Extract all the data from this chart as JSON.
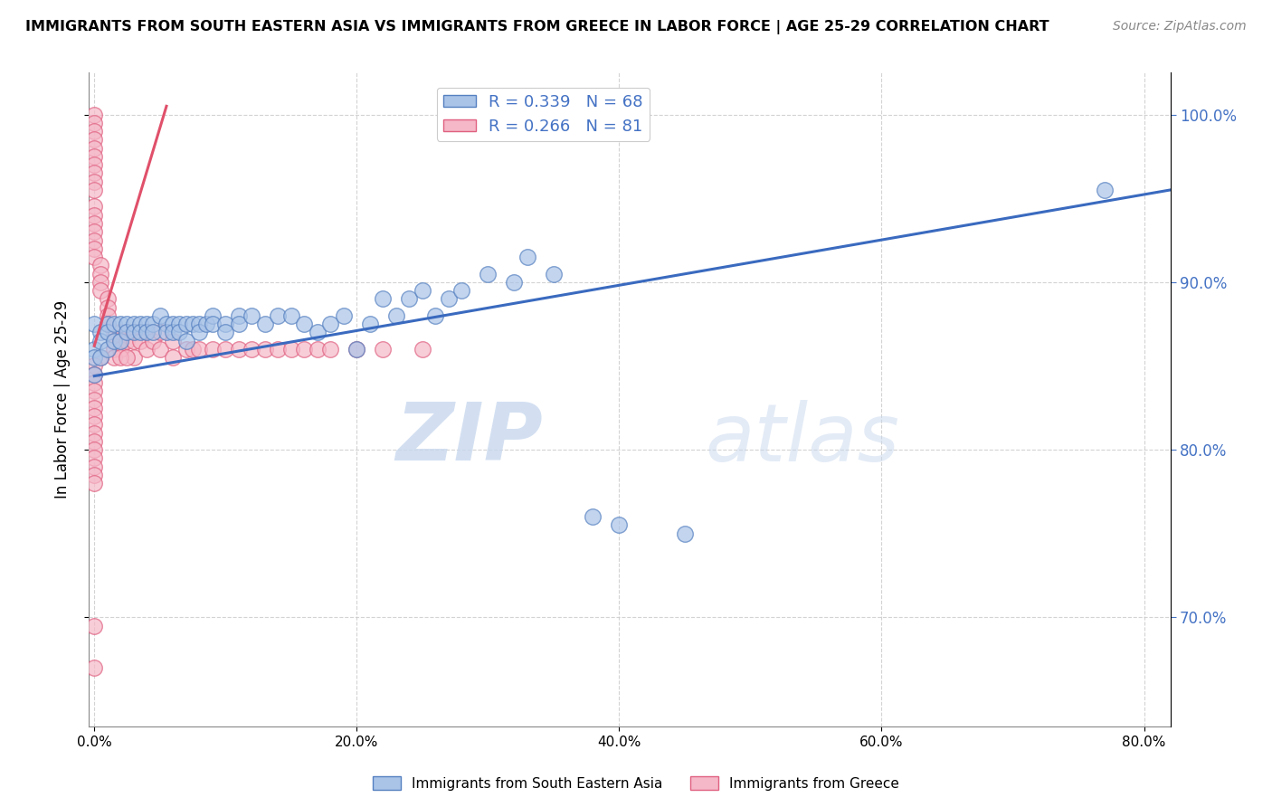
{
  "title": "IMMIGRANTS FROM SOUTH EASTERN ASIA VS IMMIGRANTS FROM GREECE IN LABOR FORCE | AGE 25-29 CORRELATION CHART",
  "source": "Source: ZipAtlas.com",
  "ylabel": "In Labor Force | Age 25-29",
  "xmin": -0.004,
  "xmax": 0.82,
  "ymin": 0.635,
  "ymax": 1.025,
  "blue_R": 0.339,
  "blue_N": 68,
  "pink_R": 0.266,
  "pink_N": 81,
  "blue_color": "#aac4e8",
  "pink_color": "#f5b8c8",
  "blue_edge_color": "#5580c0",
  "pink_edge_color": "#e06080",
  "blue_line_color": "#3a6abf",
  "pink_line_color": "#e0506a",
  "watermark_zip": "ZIP",
  "watermark_atlas": "atlas",
  "legend_label_blue": "Immigrants from South Eastern Asia",
  "legend_label_pink": "Immigrants from Greece",
  "blue_scatter_x": [
    0.0,
    0.0,
    0.0,
    0.0,
    0.005,
    0.005,
    0.005,
    0.01,
    0.01,
    0.01,
    0.015,
    0.015,
    0.02,
    0.02,
    0.025,
    0.025,
    0.03,
    0.03,
    0.035,
    0.035,
    0.04,
    0.04,
    0.045,
    0.045,
    0.05,
    0.055,
    0.055,
    0.06,
    0.06,
    0.065,
    0.065,
    0.07,
    0.07,
    0.075,
    0.08,
    0.08,
    0.085,
    0.09,
    0.09,
    0.1,
    0.1,
    0.11,
    0.11,
    0.12,
    0.13,
    0.14,
    0.15,
    0.16,
    0.17,
    0.18,
    0.19,
    0.2,
    0.21,
    0.22,
    0.23,
    0.24,
    0.25,
    0.26,
    0.27,
    0.28,
    0.3,
    0.32,
    0.33,
    0.35,
    0.38,
    0.4,
    0.77,
    0.45
  ],
  "blue_scatter_y": [
    0.86,
    0.875,
    0.855,
    0.845,
    0.87,
    0.865,
    0.855,
    0.875,
    0.87,
    0.86,
    0.875,
    0.865,
    0.875,
    0.865,
    0.875,
    0.87,
    0.875,
    0.87,
    0.875,
    0.87,
    0.875,
    0.87,
    0.875,
    0.87,
    0.88,
    0.875,
    0.87,
    0.875,
    0.87,
    0.875,
    0.87,
    0.875,
    0.865,
    0.875,
    0.875,
    0.87,
    0.875,
    0.88,
    0.875,
    0.875,
    0.87,
    0.88,
    0.875,
    0.88,
    0.875,
    0.88,
    0.88,
    0.875,
    0.87,
    0.875,
    0.88,
    0.86,
    0.875,
    0.89,
    0.88,
    0.89,
    0.895,
    0.88,
    0.89,
    0.895,
    0.905,
    0.9,
    0.915,
    0.905,
    0.76,
    0.755,
    0.955,
    0.75
  ],
  "pink_scatter_x": [
    0.0,
    0.0,
    0.0,
    0.0,
    0.0,
    0.0,
    0.0,
    0.0,
    0.0,
    0.0,
    0.0,
    0.0,
    0.0,
    0.0,
    0.0,
    0.0,
    0.0,
    0.005,
    0.005,
    0.005,
    0.005,
    0.01,
    0.01,
    0.01,
    0.01,
    0.015,
    0.015,
    0.015,
    0.02,
    0.02,
    0.02,
    0.025,
    0.025,
    0.03,
    0.03,
    0.03,
    0.035,
    0.04,
    0.04,
    0.045,
    0.05,
    0.05,
    0.06,
    0.06,
    0.07,
    0.075,
    0.08,
    0.09,
    0.1,
    0.11,
    0.12,
    0.13,
    0.14,
    0.15,
    0.16,
    0.17,
    0.18,
    0.2,
    0.22,
    0.25,
    0.015,
    0.02,
    0.025,
    0.005,
    0.0,
    0.0,
    0.0,
    0.0,
    0.0,
    0.0,
    0.0,
    0.0,
    0.0,
    0.0,
    0.0,
    0.0,
    0.0,
    0.0,
    0.0,
    0.0,
    0.0
  ],
  "pink_scatter_y": [
    1.0,
    0.995,
    0.99,
    0.985,
    0.98,
    0.975,
    0.97,
    0.965,
    0.96,
    0.955,
    0.945,
    0.94,
    0.935,
    0.93,
    0.925,
    0.92,
    0.915,
    0.91,
    0.905,
    0.9,
    0.895,
    0.89,
    0.885,
    0.88,
    0.875,
    0.87,
    0.865,
    0.86,
    0.87,
    0.865,
    0.86,
    0.87,
    0.865,
    0.87,
    0.865,
    0.855,
    0.865,
    0.87,
    0.86,
    0.865,
    0.87,
    0.86,
    0.865,
    0.855,
    0.86,
    0.86,
    0.86,
    0.86,
    0.86,
    0.86,
    0.86,
    0.86,
    0.86,
    0.86,
    0.86,
    0.86,
    0.86,
    0.86,
    0.86,
    0.86,
    0.855,
    0.855,
    0.855,
    0.855,
    0.85,
    0.845,
    0.84,
    0.835,
    0.83,
    0.825,
    0.82,
    0.815,
    0.81,
    0.805,
    0.8,
    0.795,
    0.79,
    0.785,
    0.78,
    0.695,
    0.67
  ],
  "blue_trend": [
    0.0,
    0.82,
    0.844,
    0.955
  ],
  "pink_trend": [
    0.0,
    0.055,
    0.862,
    1.005
  ],
  "xtick_vals": [
    0.0,
    0.2,
    0.4,
    0.6,
    0.8
  ],
  "xtick_labels": [
    "0.0%",
    "20.0%",
    "40.0%",
    "60.0%",
    "80.0%"
  ],
  "ytick_vals": [
    0.7,
    0.8,
    0.9,
    1.0
  ],
  "ytick_labels_left": [
    "70.0%",
    "80.0%",
    "90.0%",
    "100.0%"
  ],
  "ytick_labels_right": [
    "70.0%",
    "80.0%",
    "90.0%",
    "100.0%"
  ],
  "right_tick_color": "#4472c4"
}
